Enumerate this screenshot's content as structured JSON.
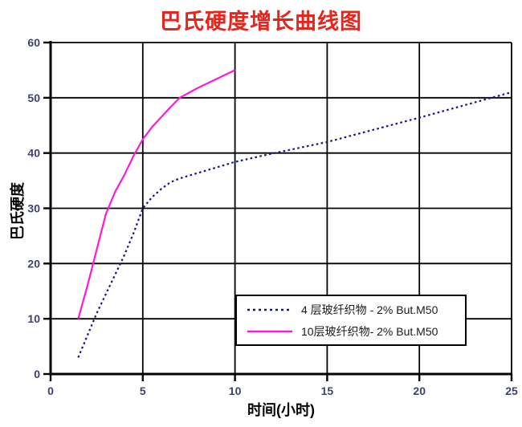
{
  "title": {
    "text": "巴氏硬度增长曲线图"
  },
  "colors": {
    "title": "#e8241d",
    "axis": "#000000",
    "grid": "#000000",
    "tick_label": "#3e4170",
    "legend_text": "#1a1a1a",
    "background": "#ffffff"
  },
  "chart_data": {
    "type": "line",
    "title": "巴氏硬度增长曲线图",
    "xlabel": "时间(小时)",
    "ylabel": "巴氏硬度",
    "xlim": [
      0,
      25
    ],
    "ylim": [
      0,
      60
    ],
    "xticks": [
      0,
      5,
      10,
      15,
      20,
      25
    ],
    "yticks": [
      0,
      10,
      20,
      30,
      40,
      50,
      60
    ],
    "grid": true,
    "legend_position": "inside-lower-right",
    "series": [
      {
        "name": "4 层玻纤织物 - 2% But.M50",
        "color": "#16168f",
        "style": "dotted",
        "points": [
          [
            1.5,
            3
          ],
          [
            2,
            7
          ],
          [
            2.5,
            11
          ],
          [
            3,
            14.5
          ],
          [
            3.5,
            18
          ],
          [
            4,
            21.5
          ],
          [
            4.5,
            25.5
          ],
          [
            5,
            30
          ],
          [
            5.5,
            32
          ],
          [
            6,
            33.5
          ],
          [
            6.5,
            34.7
          ],
          [
            7,
            35.4
          ],
          [
            8,
            36.4
          ],
          [
            9,
            37.4
          ],
          [
            10,
            38.4
          ],
          [
            12,
            39.9
          ],
          [
            15,
            42
          ],
          [
            20,
            46.4
          ],
          [
            25,
            51
          ]
        ]
      },
      {
        "name": "10层玻纤织物- 2% But.M50",
        "color": "#ff1ad4",
        "style": "solid",
        "points": [
          [
            1.5,
            10
          ],
          [
            2,
            16
          ],
          [
            2.5,
            22.5
          ],
          [
            3,
            29
          ],
          [
            3.5,
            33
          ],
          [
            4,
            36
          ],
          [
            4.5,
            39.5
          ],
          [
            5,
            42.5
          ],
          [
            5.5,
            44.7
          ],
          [
            6,
            46.5
          ],
          [
            6.5,
            48.3
          ],
          [
            7,
            50
          ],
          [
            8,
            51.8
          ],
          [
            9,
            53.4
          ],
          [
            10,
            55
          ]
        ]
      }
    ]
  }
}
